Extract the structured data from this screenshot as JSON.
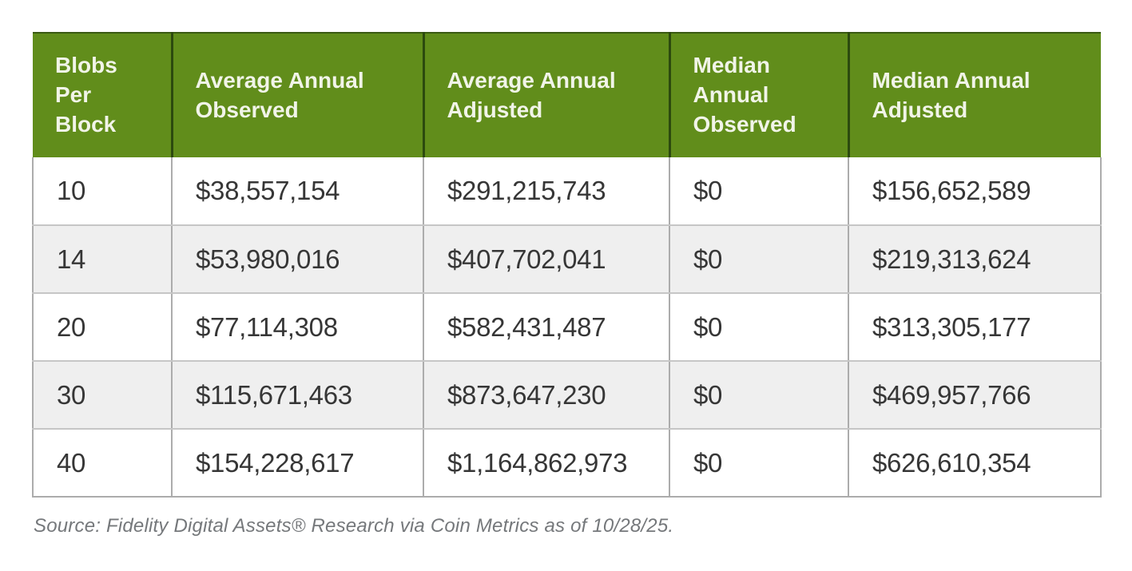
{
  "chart_data": {
    "type": "table",
    "columns": [
      "Blobs Per Block",
      "Average Annual Observed",
      "Average Annual Adjusted",
      "Median Annual Observed",
      "Median Annual Adjusted"
    ],
    "rows": [
      [
        "10",
        "$38,557,154",
        "$291,215,743",
        "$0",
        "$156,652,589"
      ],
      [
        "14",
        "$53,980,016",
        "$407,702,041",
        "$0",
        "$219,313,624"
      ],
      [
        "20",
        "$77,114,308",
        "$582,431,487",
        "$0",
        "$313,305,177"
      ],
      [
        "30",
        "$115,671,463",
        "$873,647,230",
        "$0",
        "$469,957,766"
      ],
      [
        "40",
        "$154,228,617",
        "$1,164,862,973",
        "$0",
        "$626,610,354"
      ]
    ]
  },
  "source": "Source: Fidelity Digital Assets® Research via Coin Metrics as of 10/28/25.",
  "colors": {
    "header_bg": "#618D1B",
    "header_text": "#F1F4E8",
    "header_divider": "#2C4A0E",
    "row_bg": "#FFFFFF",
    "row_alt_bg": "#EFEFEF",
    "border_vertical": "#ACACAC",
    "border_horizontal": "#C6C6C6",
    "body_text": "#363636",
    "source_text": "#75787B"
  }
}
